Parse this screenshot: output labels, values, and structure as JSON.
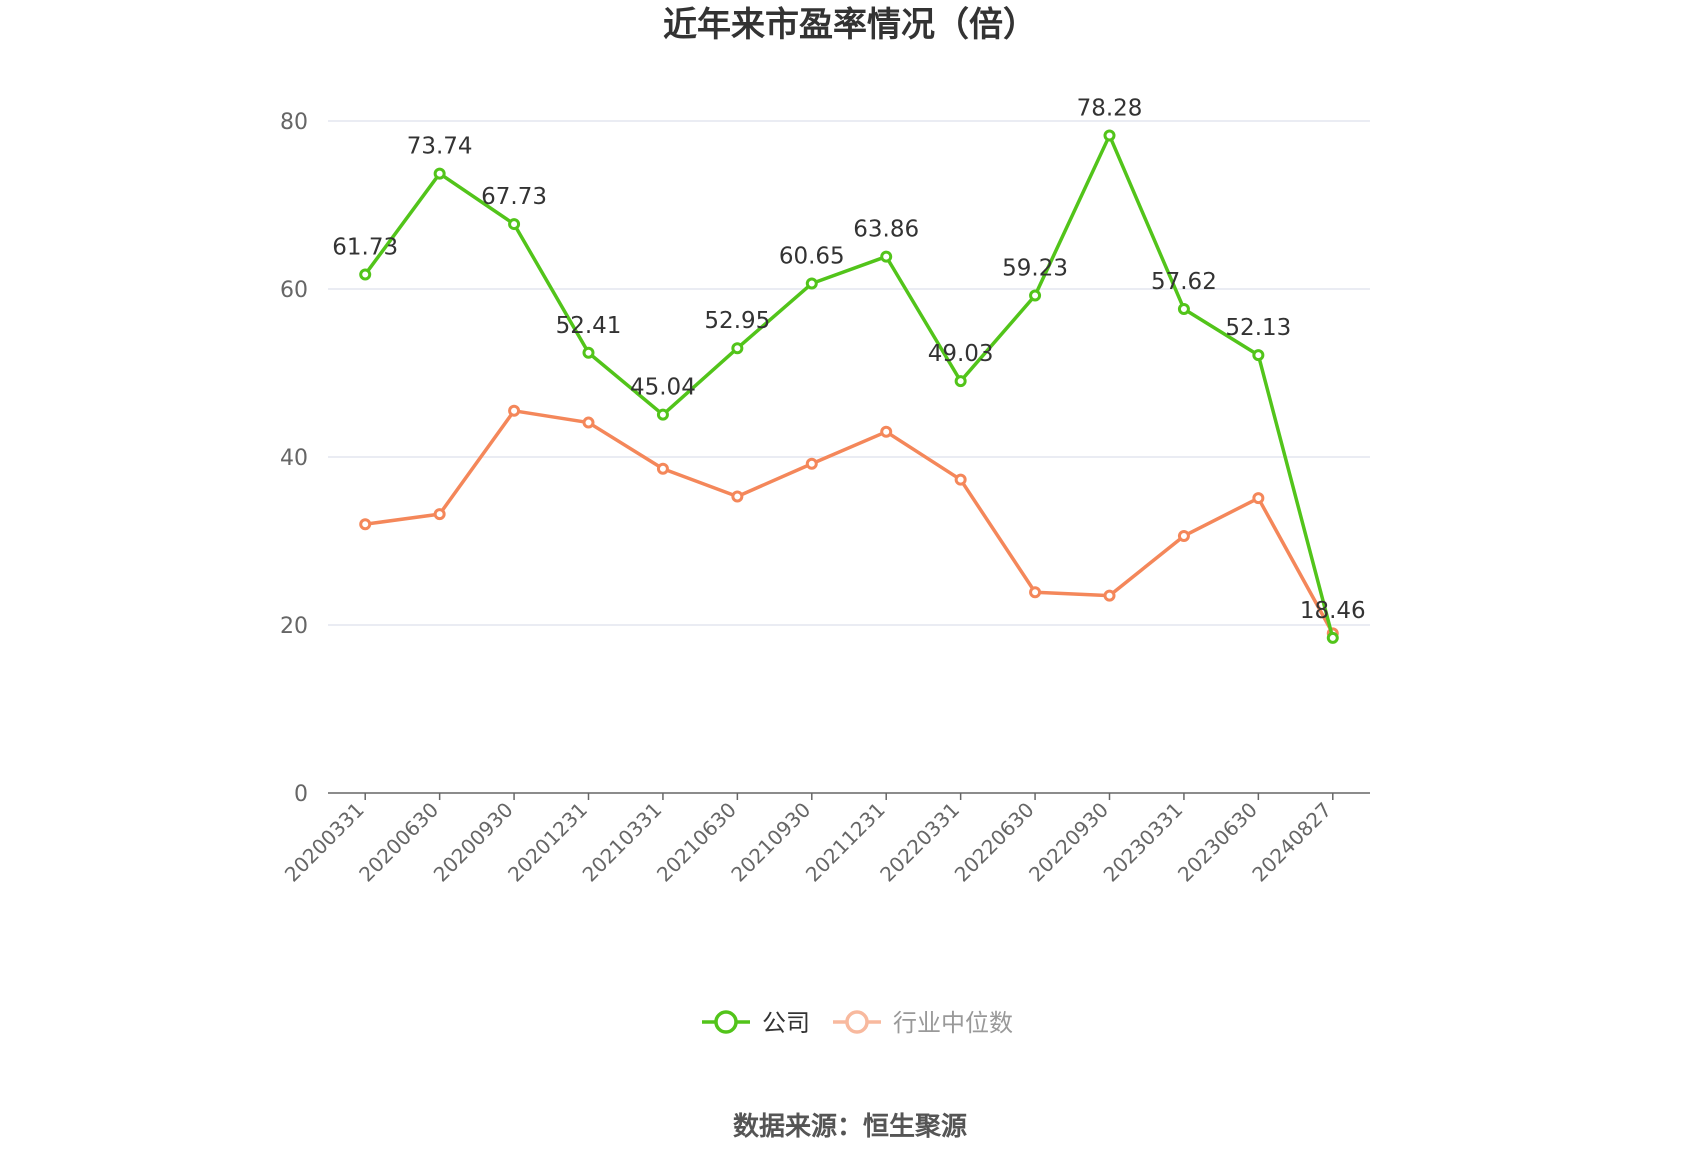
{
  "title": "近年来市盈率情况（倍）",
  "source": "数据来源：恒生聚源",
  "colors": {
    "company": "#52c41a",
    "industry": "#f4875a",
    "grid": "#e3e6ef",
    "axis": "#666666"
  },
  "chart_data": {
    "type": "line",
    "title": "近年来市盈率情况（倍）",
    "xlabel": "",
    "ylabel": "",
    "categories": [
      "20200331",
      "20200630",
      "20200930",
      "20201231",
      "20210331",
      "20210630",
      "20210930",
      "20211231",
      "20220331",
      "20220630",
      "20220930",
      "20230331",
      "20230630",
      "20240827"
    ],
    "ylim": [
      0,
      80
    ],
    "yticks": [
      0,
      20,
      40,
      60,
      80
    ],
    "grid": true,
    "legend_position": "bottom",
    "series": [
      {
        "name": "公司",
        "color": "#52c41a",
        "show_labels": true,
        "values": [
          61.73,
          73.74,
          67.73,
          52.41,
          45.04,
          52.95,
          60.65,
          63.86,
          49.03,
          59.23,
          78.28,
          57.62,
          52.13,
          18.46
        ],
        "labels": [
          "61.73",
          "73.74",
          "67.73",
          "52.41",
          "45.04",
          "52.95",
          "60.65",
          "63.86",
          "49.03",
          "59.23",
          "78.28",
          "57.62",
          "52.13",
          "18.46"
        ]
      },
      {
        "name": "行业中位数",
        "color": "#f4875a",
        "show_labels": false,
        "values": [
          32.0,
          33.2,
          45.5,
          44.1,
          38.6,
          35.3,
          39.2,
          43.0,
          37.3,
          23.9,
          23.5,
          30.6,
          35.1,
          19.0
        ]
      }
    ]
  }
}
